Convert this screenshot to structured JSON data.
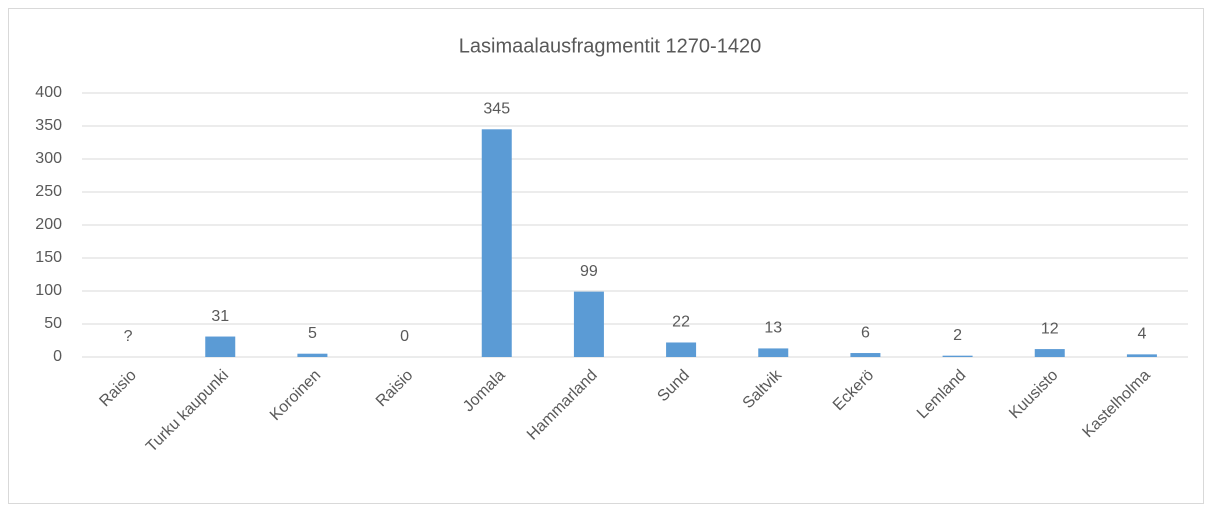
{
  "chart_data": {
    "type": "bar",
    "title": "Lasimaalausfragmentit 1270-1420",
    "categories": [
      "Raisio",
      "Turku kaupunki",
      "Koroinen",
      "Raisio",
      "Jomala",
      "Hammarland",
      "Sund",
      "Saltvik",
      "Eckerö",
      "Lemland",
      "Kuusisto",
      "Kastelholma"
    ],
    "values": [
      null,
      31,
      5,
      0,
      345,
      99,
      22,
      13,
      6,
      2,
      12,
      4
    ],
    "value_labels": [
      "?",
      "31",
      "5",
      "0",
      "345",
      "99",
      "22",
      "13",
      "6",
      "2",
      "12",
      "4"
    ],
    "color": "#5b9bd5",
    "ylim": [
      0,
      400
    ],
    "yticks": [
      0,
      50,
      100,
      150,
      200,
      250,
      300,
      350,
      400
    ],
    "grid": true
  }
}
